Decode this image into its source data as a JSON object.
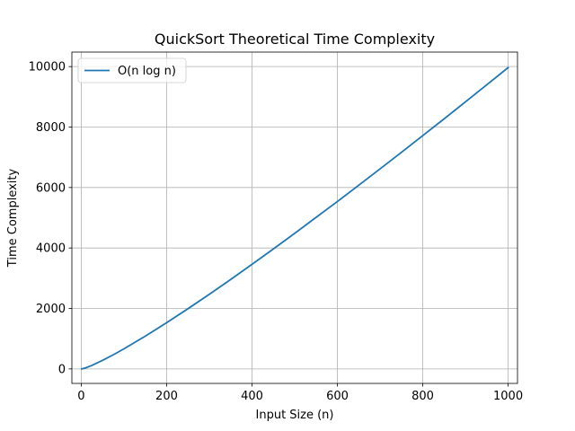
{
  "chart_data": {
    "type": "line",
    "title": "QuickSort Theoretical Time Complexity",
    "xlabel": "Input Size (n)",
    "ylabel": "Time Complexity",
    "xlim": [
      -22,
      1022
    ],
    "ylim": [
      -480,
      10480
    ],
    "xticks": [
      0,
      200,
      400,
      600,
      800,
      1000
    ],
    "yticks": [
      0,
      2000,
      4000,
      6000,
      8000,
      10000
    ],
    "xtick_labels": [
      "0",
      "200",
      "400",
      "600",
      "800",
      "1000"
    ],
    "ytick_labels": [
      "0",
      "2000",
      "4000",
      "6000",
      "8000",
      "10000"
    ],
    "grid": true,
    "legend_position": "top-left",
    "series": [
      {
        "name": "O(n log n)",
        "color": "#1f77b4",
        "x": [
          1,
          10,
          25,
          50,
          75,
          100,
          150,
          200,
          250,
          300,
          350,
          400,
          450,
          500,
          550,
          600,
          650,
          700,
          750,
          800,
          850,
          900,
          950,
          1000
        ],
        "y": [
          0,
          33,
          116,
          282,
          467,
          664,
          1084,
          1529,
          1991,
          2468,
          2957,
          3458,
          3968,
          4483,
          5011,
          5537,
          6074,
          6616,
          7162,
          7715,
          8271,
          8832,
          9398,
          9966
        ]
      }
    ]
  }
}
